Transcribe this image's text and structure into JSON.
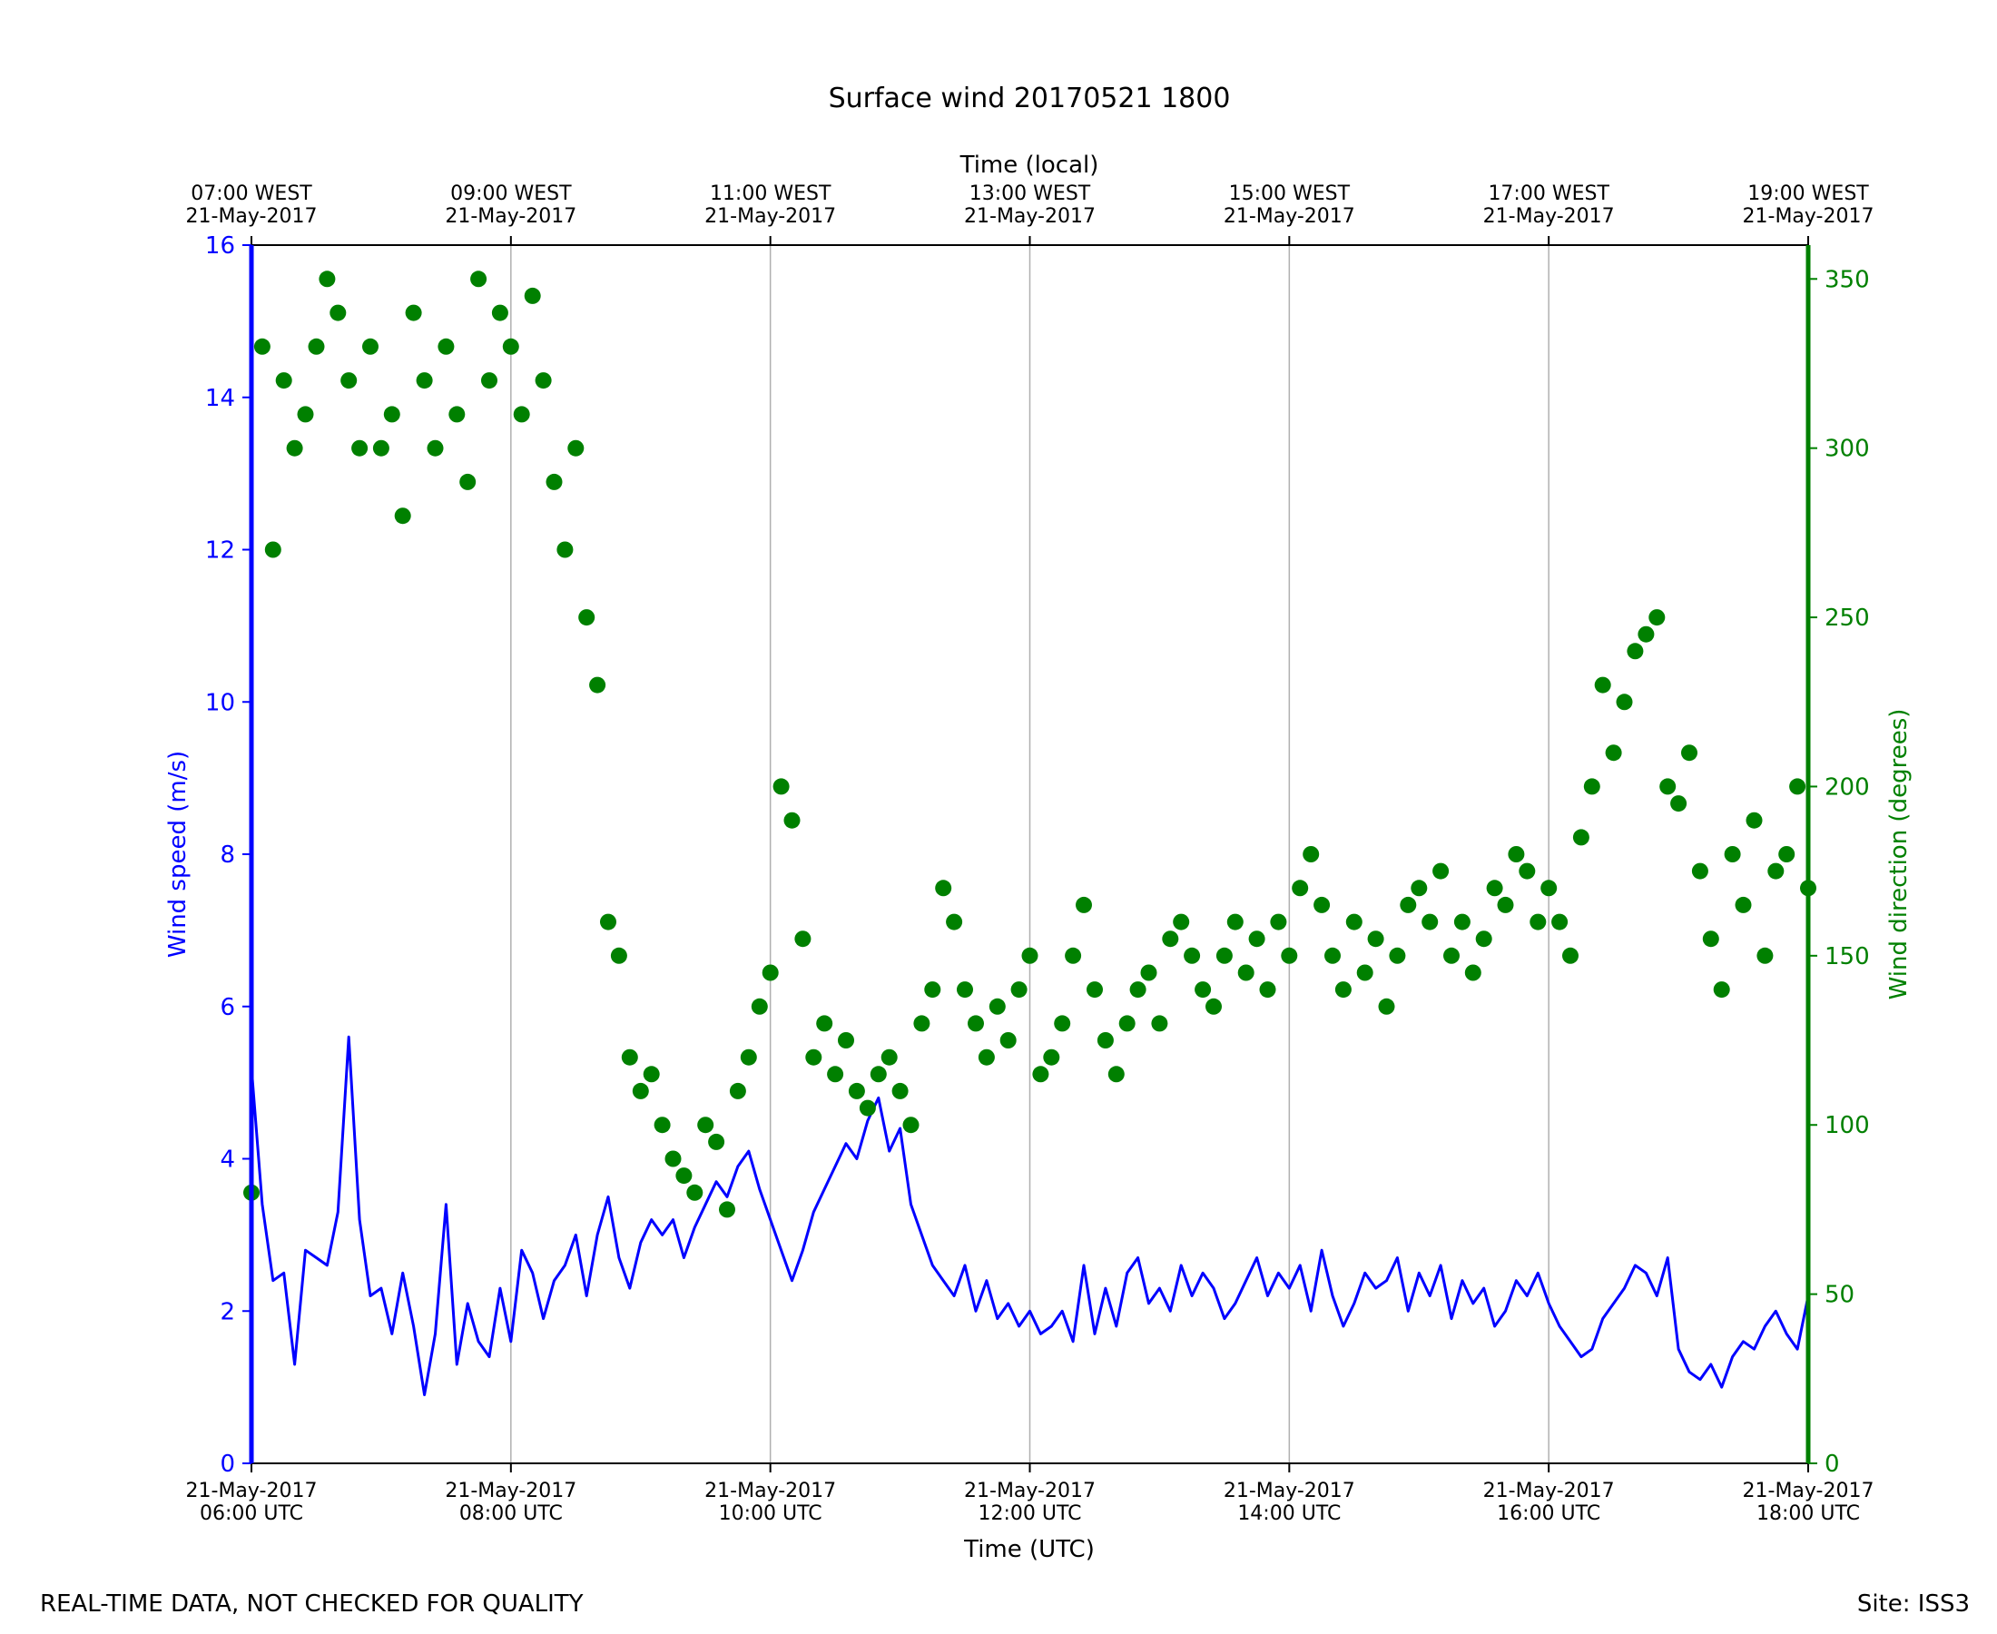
{
  "chart_data": {
    "type": "line",
    "title": "Surface wind 20170521 1800",
    "top_axis_label": "Time (local)",
    "top_ticks": [
      [
        "07:00 WEST",
        "21-May-2017"
      ],
      [
        "09:00 WEST",
        "21-May-2017"
      ],
      [
        "11:00 WEST",
        "21-May-2017"
      ],
      [
        "13:00 WEST",
        "21-May-2017"
      ],
      [
        "15:00 WEST",
        "21-May-2017"
      ],
      [
        "17:00 WEST",
        "21-May-2017"
      ],
      [
        "19:00 WEST",
        "21-May-2017"
      ]
    ],
    "xlabel": "Time (UTC)",
    "x_ticks": [
      [
        "21-May-2017",
        "06:00 UTC"
      ],
      [
        "21-May-2017",
        "08:00 UTC"
      ],
      [
        "21-May-2017",
        "10:00 UTC"
      ],
      [
        "21-May-2017",
        "12:00 UTC"
      ],
      [
        "21-May-2017",
        "14:00 UTC"
      ],
      [
        "21-May-2017",
        "16:00 UTC"
      ],
      [
        "21-May-2017",
        "18:00 UTC"
      ]
    ],
    "xlim": [
      "2017-05-21 06:00 UTC",
      "2017-05-21 18:00 UTC"
    ],
    "ylabel_left": "Wind speed (m/s)",
    "ylim_left": [
      0,
      16
    ],
    "yticks_left": [
      "0",
      "2",
      "4",
      "6",
      "8",
      "10",
      "12",
      "14",
      "16"
    ],
    "ylabel_right": "Wind direction (degrees)",
    "ylim_right": [
      0,
      360
    ],
    "yticks_right": [
      "0",
      "50",
      "100",
      "150",
      "200",
      "250",
      "300",
      "350"
    ],
    "vertical_grid": true,
    "colors": {
      "speed": "#0000ff",
      "direction": "#008000",
      "axes": "#000000",
      "grid": "#b0b0b0"
    },
    "speed_points": [
      [
        "06:00",
        5.2
      ],
      [
        "06:05",
        3.4
      ],
      [
        "06:10",
        2.4
      ],
      [
        "06:15",
        2.5
      ],
      [
        "06:20",
        1.3
      ],
      [
        "06:25",
        2.8
      ],
      [
        "06:30",
        2.7
      ],
      [
        "06:35",
        2.6
      ],
      [
        "06:40",
        3.3
      ],
      [
        "06:45",
        5.6
      ],
      [
        "06:50",
        3.2
      ],
      [
        "06:55",
        2.2
      ],
      [
        "07:00",
        2.3
      ],
      [
        "07:05",
        1.7
      ],
      [
        "07:10",
        2.5
      ],
      [
        "07:15",
        1.8
      ],
      [
        "07:20",
        0.9
      ],
      [
        "07:25",
        1.7
      ],
      [
        "07:30",
        3.4
      ],
      [
        "07:35",
        1.3
      ],
      [
        "07:40",
        2.1
      ],
      [
        "07:45",
        1.6
      ],
      [
        "07:50",
        1.4
      ],
      [
        "07:55",
        2.3
      ],
      [
        "08:00",
        1.6
      ],
      [
        "08:05",
        2.8
      ],
      [
        "08:10",
        2.5
      ],
      [
        "08:15",
        1.9
      ],
      [
        "08:20",
        2.4
      ],
      [
        "08:25",
        2.6
      ],
      [
        "08:30",
        3.0
      ],
      [
        "08:35",
        2.2
      ],
      [
        "08:40",
        3.0
      ],
      [
        "08:45",
        3.5
      ],
      [
        "08:50",
        2.7
      ],
      [
        "08:55",
        2.3
      ],
      [
        "09:00",
        2.9
      ],
      [
        "09:05",
        3.2
      ],
      [
        "09:10",
        3.0
      ],
      [
        "09:15",
        3.2
      ],
      [
        "09:20",
        2.7
      ],
      [
        "09:25",
        3.1
      ],
      [
        "09:30",
        3.4
      ],
      [
        "09:35",
        3.7
      ],
      [
        "09:40",
        3.5
      ],
      [
        "09:45",
        3.9
      ],
      [
        "09:50",
        4.1
      ],
      [
        "09:55",
        3.6
      ],
      [
        "10:00",
        3.2
      ],
      [
        "10:05",
        2.8
      ],
      [
        "10:10",
        2.4
      ],
      [
        "10:15",
        2.8
      ],
      [
        "10:20",
        3.3
      ],
      [
        "10:25",
        3.6
      ],
      [
        "10:30",
        3.9
      ],
      [
        "10:35",
        4.2
      ],
      [
        "10:40",
        4.0
      ],
      [
        "10:45",
        4.5
      ],
      [
        "10:50",
        4.8
      ],
      [
        "10:55",
        4.1
      ],
      [
        "11:00",
        4.4
      ],
      [
        "11:05",
        3.4
      ],
      [
        "11:10",
        3.0
      ],
      [
        "11:15",
        2.6
      ],
      [
        "11:20",
        2.4
      ],
      [
        "11:25",
        2.2
      ],
      [
        "11:30",
        2.6
      ],
      [
        "11:35",
        2.0
      ],
      [
        "11:40",
        2.4
      ],
      [
        "11:45",
        1.9
      ],
      [
        "11:50",
        2.1
      ],
      [
        "11:55",
        1.8
      ],
      [
        "12:00",
        2.0
      ],
      [
        "12:05",
        1.7
      ],
      [
        "12:10",
        1.8
      ],
      [
        "12:15",
        2.0
      ],
      [
        "12:20",
        1.6
      ],
      [
        "12:25",
        2.6
      ],
      [
        "12:30",
        1.7
      ],
      [
        "12:35",
        2.3
      ],
      [
        "12:40",
        1.8
      ],
      [
        "12:45",
        2.5
      ],
      [
        "12:50",
        2.7
      ],
      [
        "12:55",
        2.1
      ],
      [
        "13:00",
        2.3
      ],
      [
        "13:05",
        2.0
      ],
      [
        "13:10",
        2.6
      ],
      [
        "13:15",
        2.2
      ],
      [
        "13:20",
        2.5
      ],
      [
        "13:25",
        2.3
      ],
      [
        "13:30",
        1.9
      ],
      [
        "13:35",
        2.1
      ],
      [
        "13:40",
        2.4
      ],
      [
        "13:45",
        2.7
      ],
      [
        "13:50",
        2.2
      ],
      [
        "13:55",
        2.5
      ],
      [
        "14:00",
        2.3
      ],
      [
        "14:05",
        2.6
      ],
      [
        "14:10",
        2.0
      ],
      [
        "14:15",
        2.8
      ],
      [
        "14:20",
        2.2
      ],
      [
        "14:25",
        1.8
      ],
      [
        "14:30",
        2.1
      ],
      [
        "14:35",
        2.5
      ],
      [
        "14:40",
        2.3
      ],
      [
        "14:45",
        2.4
      ],
      [
        "14:50",
        2.7
      ],
      [
        "14:55",
        2.0
      ],
      [
        "15:00",
        2.5
      ],
      [
        "15:05",
        2.2
      ],
      [
        "15:10",
        2.6
      ],
      [
        "15:15",
        1.9
      ],
      [
        "15:20",
        2.4
      ],
      [
        "15:25",
        2.1
      ],
      [
        "15:30",
        2.3
      ],
      [
        "15:35",
        1.8
      ],
      [
        "15:40",
        2.0
      ],
      [
        "15:45",
        2.4
      ],
      [
        "15:50",
        2.2
      ],
      [
        "15:55",
        2.5
      ],
      [
        "16:00",
        2.1
      ],
      [
        "16:05",
        1.8
      ],
      [
        "16:10",
        1.6
      ],
      [
        "16:15",
        1.4
      ],
      [
        "16:20",
        1.5
      ],
      [
        "16:25",
        1.9
      ],
      [
        "16:30",
        2.1
      ],
      [
        "16:35",
        2.3
      ],
      [
        "16:40",
        2.6
      ],
      [
        "16:45",
        2.5
      ],
      [
        "16:50",
        2.2
      ],
      [
        "16:55",
        2.7
      ],
      [
        "17:00",
        1.5
      ],
      [
        "17:05",
        1.2
      ],
      [
        "17:10",
        1.1
      ],
      [
        "17:15",
        1.3
      ],
      [
        "17:20",
        1.0
      ],
      [
        "17:25",
        1.4
      ],
      [
        "17:30",
        1.6
      ],
      [
        "17:35",
        1.5
      ],
      [
        "17:40",
        1.8
      ],
      [
        "17:45",
        2.0
      ],
      [
        "17:50",
        1.7
      ],
      [
        "17:55",
        1.5
      ],
      [
        "18:00",
        2.2
      ]
    ],
    "direction_points": [
      [
        "06:00",
        80
      ],
      [
        "06:05",
        330
      ],
      [
        "06:10",
        270
      ],
      [
        "06:15",
        320
      ],
      [
        "06:20",
        300
      ],
      [
        "06:25",
        310
      ],
      [
        "06:30",
        330
      ],
      [
        "06:35",
        350
      ],
      [
        "06:40",
        340
      ],
      [
        "06:45",
        320
      ],
      [
        "06:50",
        300
      ],
      [
        "06:55",
        330
      ],
      [
        "07:00",
        300
      ],
      [
        "07:05",
        310
      ],
      [
        "07:10",
        280
      ],
      [
        "07:15",
        340
      ],
      [
        "07:20",
        320
      ],
      [
        "07:25",
        300
      ],
      [
        "07:30",
        330
      ],
      [
        "07:35",
        310
      ],
      [
        "07:40",
        290
      ],
      [
        "07:45",
        350
      ],
      [
        "07:50",
        320
      ],
      [
        "07:55",
        340
      ],
      [
        "08:00",
        330
      ],
      [
        "08:05",
        310
      ],
      [
        "08:10",
        345
      ],
      [
        "08:15",
        320
      ],
      [
        "08:20",
        290
      ],
      [
        "08:25",
        270
      ],
      [
        "08:30",
        300
      ],
      [
        "08:35",
        250
      ],
      [
        "08:40",
        230
      ],
      [
        "08:45",
        160
      ],
      [
        "08:50",
        150
      ],
      [
        "08:55",
        120
      ],
      [
        "09:00",
        110
      ],
      [
        "09:05",
        115
      ],
      [
        "09:10",
        100
      ],
      [
        "09:15",
        90
      ],
      [
        "09:20",
        85
      ],
      [
        "09:25",
        80
      ],
      [
        "09:30",
        100
      ],
      [
        "09:35",
        95
      ],
      [
        "09:40",
        75
      ],
      [
        "09:45",
        110
      ],
      [
        "09:50",
        120
      ],
      [
        "09:55",
        135
      ],
      [
        "10:00",
        145
      ],
      [
        "10:05",
        200
      ],
      [
        "10:10",
        190
      ],
      [
        "10:15",
        155
      ],
      [
        "10:20",
        120
      ],
      [
        "10:25",
        130
      ],
      [
        "10:30",
        115
      ],
      [
        "10:35",
        125
      ],
      [
        "10:40",
        110
      ],
      [
        "10:45",
        105
      ],
      [
        "10:50",
        115
      ],
      [
        "10:55",
        120
      ],
      [
        "11:00",
        110
      ],
      [
        "11:05",
        100
      ],
      [
        "11:10",
        130
      ],
      [
        "11:15",
        140
      ],
      [
        "11:20",
        170
      ],
      [
        "11:25",
        160
      ],
      [
        "11:30",
        140
      ],
      [
        "11:35",
        130
      ],
      [
        "11:40",
        120
      ],
      [
        "11:45",
        135
      ],
      [
        "11:50",
        125
      ],
      [
        "11:55",
        140
      ],
      [
        "12:00",
        150
      ],
      [
        "12:05",
        115
      ],
      [
        "12:10",
        120
      ],
      [
        "12:15",
        130
      ],
      [
        "12:20",
        150
      ],
      [
        "12:25",
        165
      ],
      [
        "12:30",
        140
      ],
      [
        "12:35",
        125
      ],
      [
        "12:40",
        115
      ],
      [
        "12:45",
        130
      ],
      [
        "12:50",
        140
      ],
      [
        "12:55",
        145
      ],
      [
        "13:00",
        130
      ],
      [
        "13:05",
        155
      ],
      [
        "13:10",
        160
      ],
      [
        "13:15",
        150
      ],
      [
        "13:20",
        140
      ],
      [
        "13:25",
        135
      ],
      [
        "13:30",
        150
      ],
      [
        "13:35",
        160
      ],
      [
        "13:40",
        145
      ],
      [
        "13:45",
        155
      ],
      [
        "13:50",
        140
      ],
      [
        "13:55",
        160
      ],
      [
        "14:00",
        150
      ],
      [
        "14:05",
        170
      ],
      [
        "14:10",
        180
      ],
      [
        "14:15",
        165
      ],
      [
        "14:20",
        150
      ],
      [
        "14:25",
        140
      ],
      [
        "14:30",
        160
      ],
      [
        "14:35",
        145
      ],
      [
        "14:40",
        155
      ],
      [
        "14:45",
        135
      ],
      [
        "14:50",
        150
      ],
      [
        "14:55",
        165
      ],
      [
        "15:00",
        170
      ],
      [
        "15:05",
        160
      ],
      [
        "15:10",
        175
      ],
      [
        "15:15",
        150
      ],
      [
        "15:20",
        160
      ],
      [
        "15:25",
        145
      ],
      [
        "15:30",
        155
      ],
      [
        "15:35",
        170
      ],
      [
        "15:40",
        165
      ],
      [
        "15:45",
        180
      ],
      [
        "15:50",
        175
      ],
      [
        "15:55",
        160
      ],
      [
        "16:00",
        170
      ],
      [
        "16:05",
        160
      ],
      [
        "16:10",
        150
      ],
      [
        "16:15",
        185
      ],
      [
        "16:20",
        200
      ],
      [
        "16:25",
        230
      ],
      [
        "16:30",
        210
      ],
      [
        "16:35",
        225
      ],
      [
        "16:40",
        240
      ],
      [
        "16:45",
        245
      ],
      [
        "16:50",
        250
      ],
      [
        "16:55",
        200
      ],
      [
        "17:00",
        195
      ],
      [
        "17:05",
        210
      ],
      [
        "17:10",
        175
      ],
      [
        "17:15",
        155
      ],
      [
        "17:20",
        140
      ],
      [
        "17:25",
        180
      ],
      [
        "17:30",
        165
      ],
      [
        "17:35",
        190
      ],
      [
        "17:40",
        150
      ],
      [
        "17:45",
        175
      ],
      [
        "17:50",
        180
      ],
      [
        "17:55",
        200
      ],
      [
        "18:00",
        170
      ]
    ]
  },
  "footer": {
    "left": "REAL-TIME DATA, NOT CHECKED FOR QUALITY",
    "right": "Site: ISS3"
  }
}
